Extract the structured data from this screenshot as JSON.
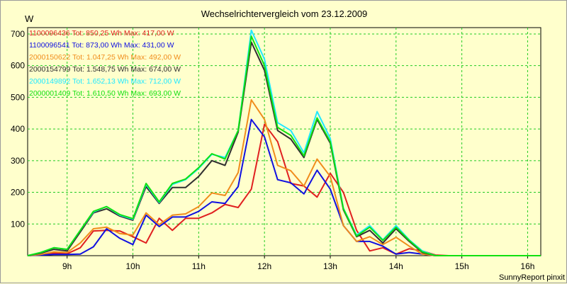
{
  "chart_data": {
    "type": "line",
    "title": "Wechselrichtervergleich vom 23.12.2009",
    "ylabel": "W",
    "xlabel": "",
    "ylim": [
      0,
      720
    ],
    "xlim": [
      8.4,
      16.2
    ],
    "grid": true,
    "legend_position": "top-left",
    "credit": "SunnyReport pinxit",
    "x_ticks": [
      9,
      10,
      11,
      12,
      13,
      14,
      15,
      16
    ],
    "x_tick_labels": [
      "9h",
      "10h",
      "11h",
      "12h",
      "13h",
      "14h",
      "15h",
      "16h"
    ],
    "y_ticks": [
      100,
      200,
      300,
      400,
      500,
      600,
      700
    ],
    "y_tick_labels": [
      "100",
      "200",
      "300",
      "400",
      "500",
      "600",
      "700"
    ],
    "x": [
      8.4,
      8.6,
      8.8,
      9.0,
      9.2,
      9.4,
      9.6,
      9.8,
      10.0,
      10.2,
      10.4,
      10.6,
      10.8,
      11.0,
      11.2,
      11.4,
      11.6,
      11.8,
      12.0,
      12.2,
      12.4,
      12.6,
      12.8,
      13.0,
      13.2,
      13.4,
      13.6,
      13.8,
      14.0,
      14.2,
      14.4,
      14.6,
      14.8,
      15.0,
      15.2,
      15.4,
      15.6,
      15.8,
      16.0,
      16.2
    ],
    "series": [
      {
        "name": "1100096436",
        "legend": "1100096436  Tot: 850,25 Wh Max: 417,00 W",
        "color": "#e02020",
        "values": [
          0,
          3,
          8,
          6,
          25,
          78,
          80,
          78,
          60,
          40,
          118,
          80,
          118,
          118,
          135,
          162,
          152,
          210,
          415,
          360,
          228,
          220,
          185,
          260,
          200,
          80,
          15,
          25,
          5,
          22,
          15,
          2,
          0,
          0,
          0,
          0,
          0,
          0,
          0,
          0
        ]
      },
      {
        "name": "1100096541",
        "legend": "1100096541  Tot: 873,00 Wh Max: 431,00 W",
        "color": "#1010e0",
        "values": [
          0,
          2,
          4,
          4,
          5,
          28,
          85,
          55,
          35,
          128,
          92,
          122,
          122,
          140,
          170,
          165,
          218,
          430,
          375,
          240,
          230,
          195,
          270,
          210,
          95,
          45,
          45,
          30,
          5,
          10,
          5,
          0,
          0,
          0,
          0,
          0,
          0,
          0,
          0,
          0
        ]
      },
      {
        "name": "2000150622",
        "legend": "2000150622  Tot: 1.047,25 Wh Max: 492,00 W",
        "color": "#f08c1c",
        "values": [
          0,
          4,
          12,
          10,
          40,
          85,
          90,
          70,
          65,
          135,
          98,
          128,
          132,
          155,
          198,
          190,
          262,
          492,
          430,
          285,
          268,
          220,
          305,
          250,
          95,
          45,
          60,
          35,
          58,
          30,
          5,
          0,
          0,
          0,
          0,
          0,
          0,
          0,
          0,
          0
        ]
      },
      {
        "name": "2000154799",
        "legend": "2000154799  Tot: 1.548,75 Wh Max: 674,00 W",
        "color": "#303030",
        "values": [
          0,
          8,
          20,
          15,
          75,
          135,
          148,
          125,
          112,
          218,
          165,
          215,
          215,
          250,
          300,
          285,
          390,
          674,
          585,
          395,
          368,
          310,
          430,
          355,
          145,
          60,
          80,
          40,
          85,
          45,
          10,
          0,
          0,
          0,
          0,
          0,
          0,
          0,
          0,
          0
        ]
      },
      {
        "name": "2000149892",
        "legend": "2000149892  Tot: 1.652,13 Wh Max: 712,00 W",
        "color": "#20e8ff",
        "values": [
          0,
          10,
          25,
          20,
          80,
          138,
          155,
          128,
          115,
          225,
          168,
          225,
          240,
          275,
          320,
          310,
          395,
          712,
          620,
          420,
          395,
          325,
          455,
          370,
          150,
          65,
          95,
          50,
          95,
          50,
          15,
          0,
          0,
          0,
          0,
          0,
          0,
          0,
          0,
          0
        ]
      },
      {
        "name": "2000001409",
        "legend": "2000001409  Tot: 1.610,50 Wh Max: 693,00 W",
        "color": "#10e010",
        "values": [
          0,
          10,
          25,
          20,
          80,
          140,
          155,
          130,
          117,
          228,
          170,
          228,
          242,
          278,
          322,
          305,
          395,
          693,
          600,
          405,
          380,
          315,
          435,
          360,
          148,
          62,
          90,
          48,
          90,
          48,
          12,
          0,
          0,
          0,
          0,
          0,
          0,
          0,
          0,
          0
        ]
      }
    ]
  }
}
